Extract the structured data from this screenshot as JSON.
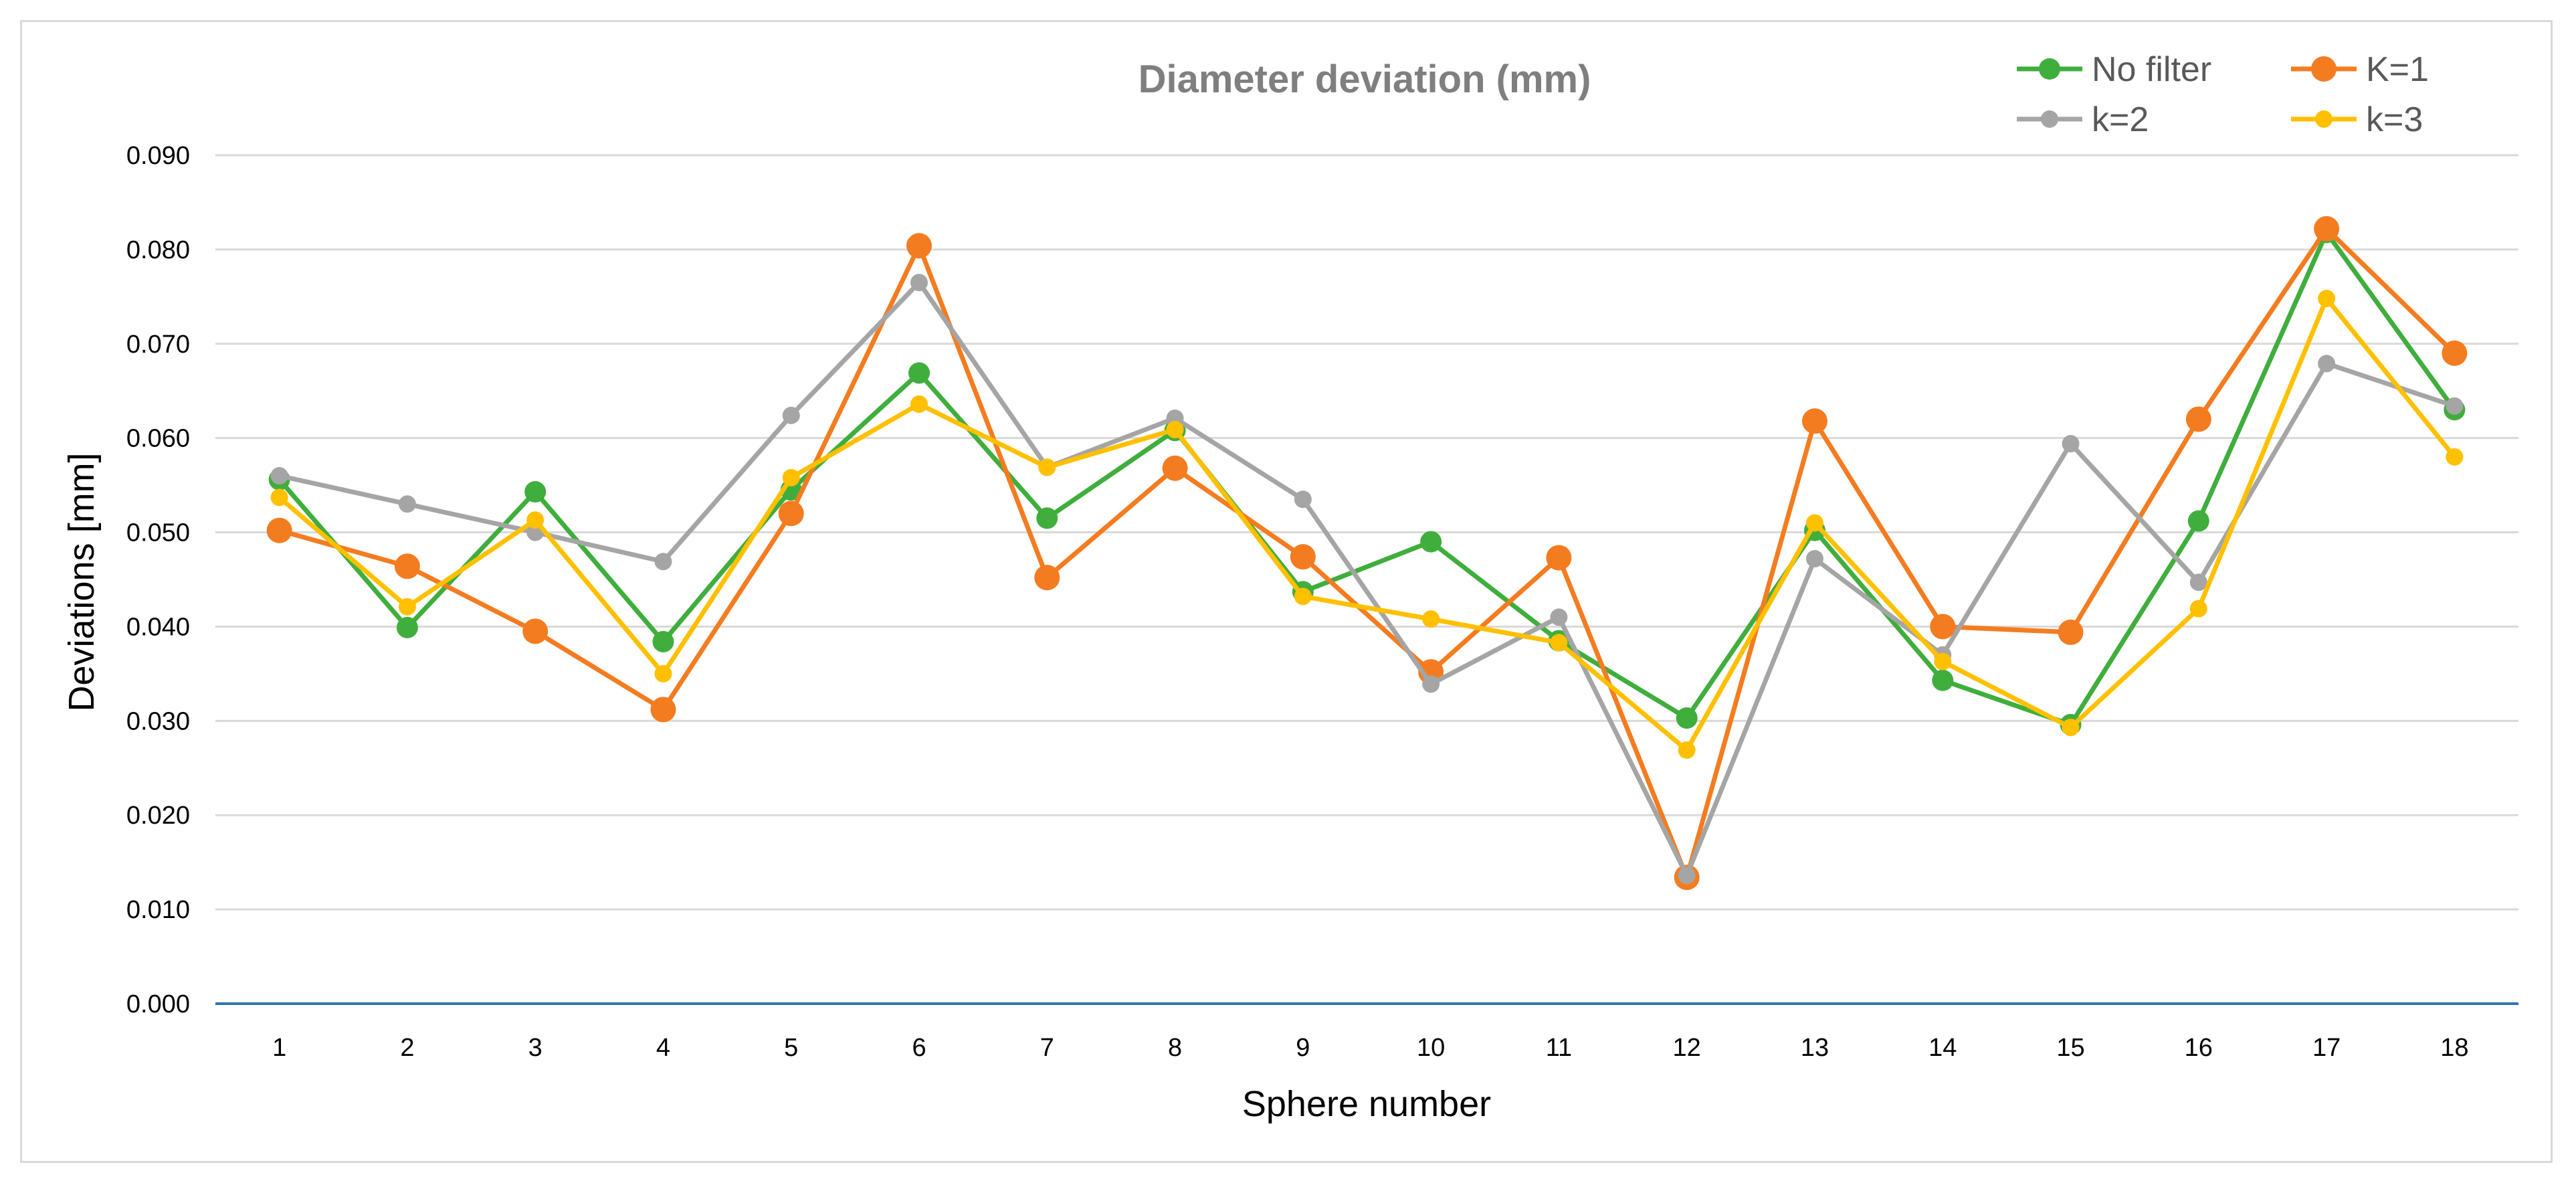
{
  "chart_data": {
    "type": "line",
    "title": "Diameter deviation (mm)",
    "xlabel": "Sphere number",
    "ylabel": "Deviations [mm]",
    "ylim": [
      0,
      0.09
    ],
    "y_ticks": [
      "0.000",
      "0.010",
      "0.020",
      "0.030",
      "0.040",
      "0.050",
      "0.060",
      "0.070",
      "0.080",
      "0.090"
    ],
    "categories": [
      "1",
      "2",
      "3",
      "4",
      "5",
      "6",
      "7",
      "8",
      "9",
      "10",
      "11",
      "12",
      "13",
      "14",
      "15",
      "16",
      "17",
      "18"
    ],
    "grid": true,
    "legend_position": "top-right",
    "series": [
      {
        "name": "No filter",
        "color": "#3fae3c",
        "values": [
          0.0556,
          0.0399,
          0.0543,
          0.0384,
          0.0545,
          0.0669,
          0.0515,
          0.0608,
          0.0437,
          0.049,
          0.0385,
          0.0303,
          0.0502,
          0.0343,
          0.0296,
          0.0512,
          0.0818,
          0.063
        ]
      },
      {
        "name": "K=1",
        "color": "#f47c20",
        "values": [
          0.0502,
          0.0464,
          0.0395,
          0.0312,
          0.052,
          0.0804,
          0.0452,
          0.0568,
          0.0474,
          0.0352,
          0.0473,
          0.0134,
          0.0618,
          0.04,
          0.0394,
          0.062,
          0.0822,
          0.069
        ]
      },
      {
        "name": "k=2",
        "color": "#a5a5a5",
        "values": [
          0.056,
          0.053,
          0.05,
          0.0469,
          0.0624,
          0.0765,
          0.0569,
          0.0621,
          0.0535,
          0.0339,
          0.041,
          0.0136,
          0.0472,
          0.037,
          0.0594,
          0.0447,
          0.0679,
          0.0634
        ]
      },
      {
        "name": "k=3",
        "color": "#ffc000",
        "values": [
          0.0537,
          0.0421,
          0.0513,
          0.035,
          0.0558,
          0.0636,
          0.0569,
          0.0609,
          0.0432,
          0.0408,
          0.0383,
          0.0269,
          0.051,
          0.0363,
          0.0293,
          0.0419,
          0.0748,
          0.058
        ]
      }
    ]
  },
  "colors": {
    "zero_axis": "#2e75b6",
    "gridline": "#d9d9d9",
    "frame": "#d9d9d9"
  }
}
